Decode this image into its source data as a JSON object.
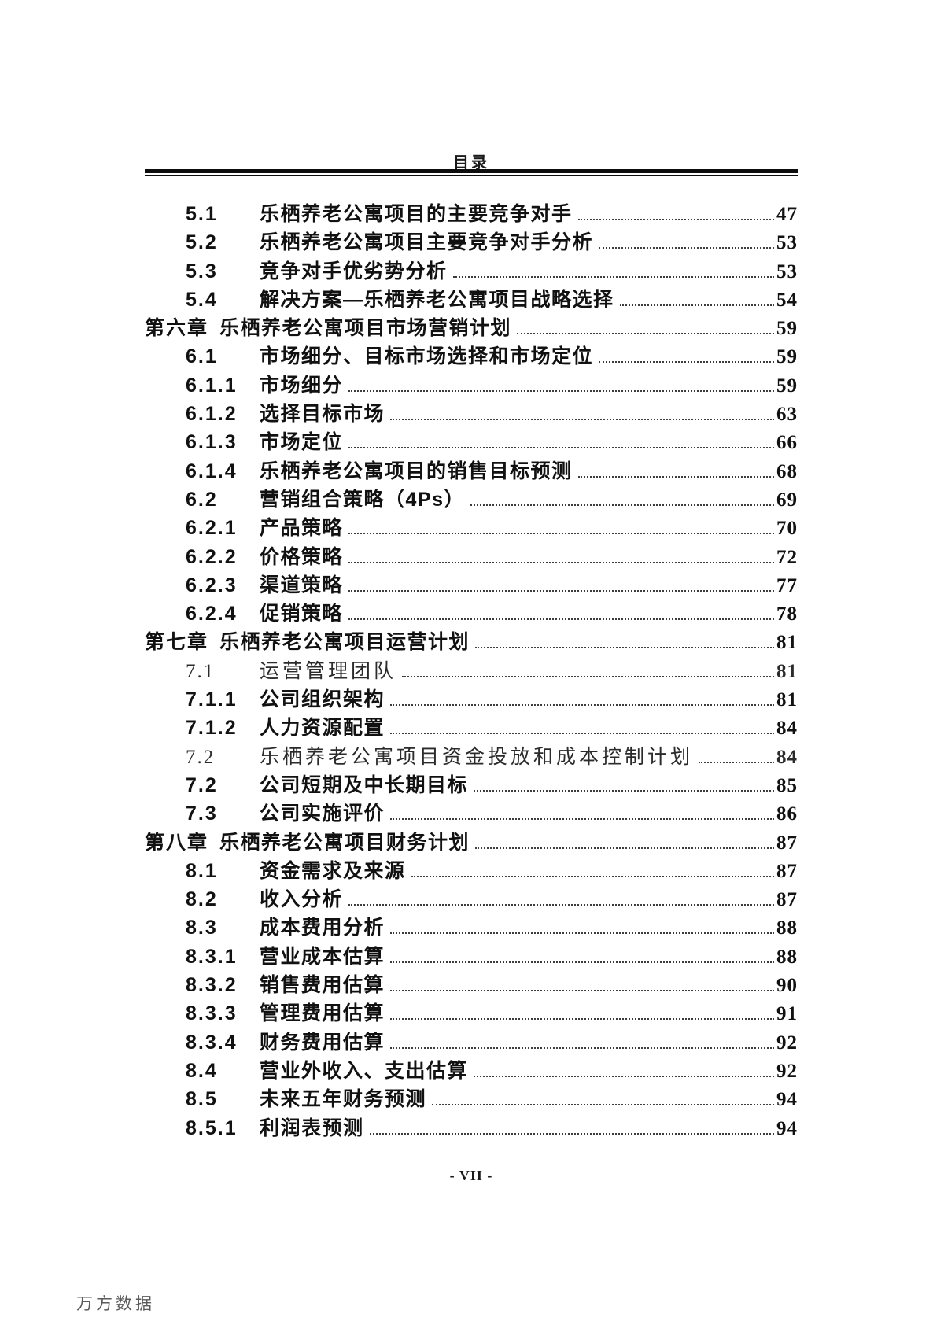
{
  "page": {
    "header_title": "目录",
    "footer_page_label": "- VII -",
    "watermark": "万方数据"
  },
  "colors": {
    "text": "#111111",
    "rule": "#0d0d0d",
    "watermark": "#5a5a5a"
  },
  "toc": {
    "entries": [
      {
        "num": "5.1",
        "title": "乐栖养老公寓项目的主要竞争对手",
        "page": "47",
        "level": "sub",
        "style": "bold"
      },
      {
        "num": "5.2",
        "title": "乐栖养老公寓项目主要竞争对手分析",
        "page": "53",
        "level": "sub",
        "style": "bold"
      },
      {
        "num": "5.3",
        "title": "竞争对手优劣势分析",
        "page": "53",
        "level": "sub",
        "style": "bold"
      },
      {
        "num": "5.4",
        "title": "解决方案—乐栖养老公寓项目战略选择",
        "page": "54",
        "level": "sub",
        "style": "bold"
      },
      {
        "num": "第六章",
        "title": "乐栖养老公寓项目市场营销计划",
        "page": "59",
        "level": "chapter",
        "style": "bold"
      },
      {
        "num": "6.1",
        "title": "市场细分、目标市场选择和市场定位",
        "page": "59",
        "level": "sub",
        "style": "bold"
      },
      {
        "num": "6.1.1",
        "title": "市场细分",
        "page": "59",
        "level": "sub",
        "style": "bold"
      },
      {
        "num": "6.1.2",
        "title": "选择目标市场",
        "page": "63",
        "level": "sub",
        "style": "bold"
      },
      {
        "num": "6.1.3",
        "title": "市场定位",
        "page": "66",
        "level": "sub",
        "style": "bold"
      },
      {
        "num": "6.1.4",
        "title": "乐栖养老公寓项目的销售目标预测",
        "page": "68",
        "level": "sub",
        "style": "bold"
      },
      {
        "num": "6.2",
        "title": "营销组合策略（4Ps）",
        "page": "69",
        "level": "sub",
        "style": "bold"
      },
      {
        "num": "6.2.1",
        "title": "产品策略",
        "page": "70",
        "level": "sub",
        "style": "bold"
      },
      {
        "num": "6.2.2",
        "title": "价格策略",
        "page": "72",
        "level": "sub",
        "style": "bold"
      },
      {
        "num": "6.2.3",
        "title": "渠道策略",
        "page": "77",
        "level": "sub",
        "style": "bold"
      },
      {
        "num": "6.2.4",
        "title": "促销策略",
        "page": "78",
        "level": "sub",
        "style": "bold"
      },
      {
        "num": "第七章",
        "title": "乐栖养老公寓项目运营计划",
        "page": "81",
        "level": "chapter",
        "style": "bold"
      },
      {
        "num": "7.1",
        "title": "运营管理团队",
        "page": "81",
        "level": "sub",
        "style": "song"
      },
      {
        "num": "7.1.1",
        "title": "公司组织架构",
        "page": "81",
        "level": "sub",
        "style": "bold"
      },
      {
        "num": "7.1.2",
        "title": "人力资源配置",
        "page": "84",
        "level": "sub",
        "style": "bold"
      },
      {
        "num": "7.2",
        "title": "乐栖养老公寓项目资金投放和成本控制计划",
        "page": "84",
        "level": "sub",
        "style": "song"
      },
      {
        "num": "7.2",
        "title": "公司短期及中长期目标",
        "page": "85",
        "level": "sub",
        "style": "bold"
      },
      {
        "num": "7.3",
        "title": "公司实施评价",
        "page": "86",
        "level": "sub",
        "style": "bold"
      },
      {
        "num": "第八章",
        "title": "乐栖养老公寓项目财务计划",
        "page": "87",
        "level": "chapter",
        "style": "bold"
      },
      {
        "num": "8.1",
        "title": "资金需求及来源",
        "page": "87",
        "level": "sub",
        "style": "bold"
      },
      {
        "num": "8.2",
        "title": "收入分析",
        "page": "87",
        "level": "sub",
        "style": "bold"
      },
      {
        "num": "8.3",
        "title": "成本费用分析",
        "page": "88",
        "level": "sub",
        "style": "bold"
      },
      {
        "num": "8.3.1",
        "title": "营业成本估算",
        "page": "88",
        "level": "sub",
        "style": "bold"
      },
      {
        "num": "8.3.2",
        "title": "销售费用估算",
        "page": "90",
        "level": "sub",
        "style": "bold"
      },
      {
        "num": "8.3.3",
        "title": "管理费用估算",
        "page": "91",
        "level": "sub",
        "style": "bold"
      },
      {
        "num": "8.3.4",
        "title": "财务费用估算",
        "page": "92",
        "level": "sub",
        "style": "bold"
      },
      {
        "num": "8.4",
        "title": "营业外收入、支出估算",
        "page": "92",
        "level": "sub",
        "style": "bold"
      },
      {
        "num": "8.5",
        "title": "未来五年财务预测",
        "page": "94",
        "level": "sub",
        "style": "bold"
      },
      {
        "num": "8.5.1",
        "title": "利润表预测",
        "page": "94",
        "level": "sub",
        "style": "bold"
      }
    ]
  }
}
